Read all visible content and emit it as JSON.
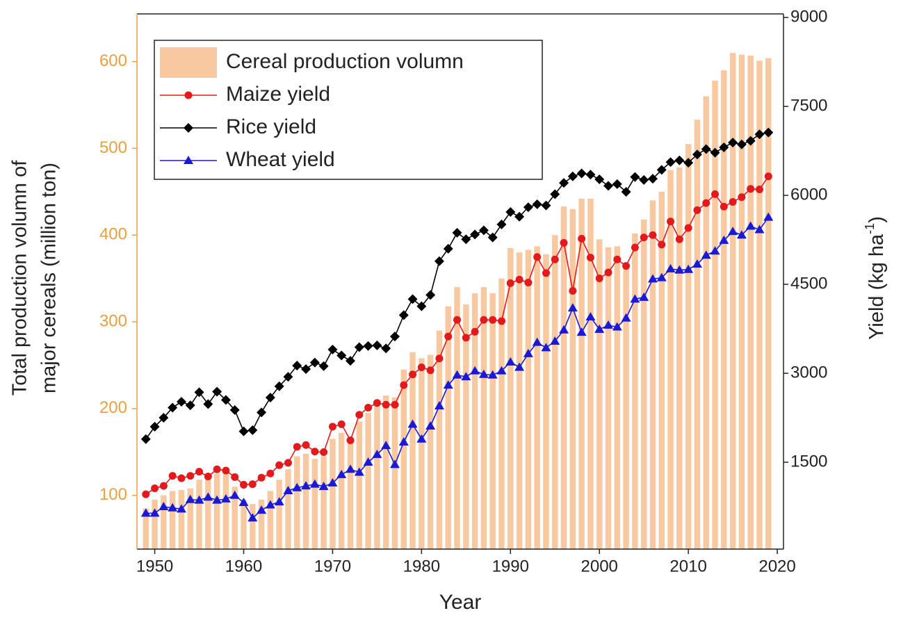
{
  "chart_data": {
    "type": "bar",
    "x_label": "Year",
    "y_label": [
      "Total production volumn of",
      "major cereals (million ton)"
    ],
    "y2_label": [
      "Yield (kg ha",
      "-1",
      ")"
    ],
    "x": [
      1949,
      1950,
      1951,
      1952,
      1953,
      1954,
      1955,
      1956,
      1957,
      1958,
      1959,
      1960,
      1961,
      1962,
      1963,
      1964,
      1965,
      1966,
      1967,
      1968,
      1969,
      1970,
      1971,
      1972,
      1973,
      1974,
      1975,
      1976,
      1977,
      1978,
      1979,
      1980,
      1981,
      1982,
      1983,
      1984,
      1985,
      1986,
      1987,
      1988,
      1989,
      1990,
      1991,
      1992,
      1993,
      1994,
      1995,
      1996,
      1997,
      1998,
      1999,
      2000,
      2001,
      2002,
      2003,
      2004,
      2005,
      2006,
      2007,
      2008,
      2009,
      2010,
      2011,
      2012,
      2013,
      2014,
      2015,
      2016,
      2017,
      2018,
      2019
    ],
    "xlim": [
      1948,
      2020.7
    ],
    "xticks": [
      1950,
      1960,
      1970,
      1980,
      1990,
      2000,
      2010,
      2020
    ],
    "ylim": [
      38,
      655
    ],
    "yticks": [
      100,
      200,
      300,
      400,
      500,
      600
    ],
    "y2lim": [
      35,
      9060
    ],
    "y2ticks": [
      1500,
      3000,
      4500,
      6000,
      7500,
      9000
    ],
    "legend": "upper left",
    "series": [
      {
        "name": "Cereal production volumn",
        "type": "bar",
        "color": "#f8c9a0",
        "axis": "y",
        "values": [
          85,
          95,
          100,
          105,
          106,
          108,
          118,
          122,
          125,
          130,
          110,
          95,
          90,
          95,
          105,
          118,
          130,
          145,
          148,
          142,
          145,
          165,
          172,
          165,
          185,
          195,
          210,
          215,
          213,
          245,
          265,
          258,
          262,
          290,
          318,
          340,
          320,
          333,
          340,
          333,
          350,
          385,
          380,
          383,
          387,
          378,
          400,
          433,
          430,
          442,
          442,
          395,
          386,
          387,
          365,
          402,
          418,
          440,
          450,
          475,
          478,
          505,
          533,
          560,
          578,
          590,
          610,
          608,
          607,
          601,
          604
        ]
      },
      {
        "name": "Maize yield",
        "type": "line",
        "marker": "circle",
        "color": "#e31a1c",
        "axis": "y2",
        "values": [
          960,
          1060,
          1100,
          1270,
          1230,
          1270,
          1340,
          1260,
          1380,
          1360,
          1250,
          1120,
          1130,
          1240,
          1310,
          1450,
          1490,
          1760,
          1790,
          1680,
          1670,
          2100,
          2140,
          1870,
          2300,
          2420,
          2500,
          2470,
          2470,
          2800,
          2980,
          3100,
          3050,
          3250,
          3620,
          3900,
          3600,
          3700,
          3900,
          3900,
          3880,
          4520,
          4580,
          4530,
          4960,
          4690,
          4920,
          5200,
          4390,
          5270,
          4950,
          4600,
          4700,
          4920,
          4810,
          5120,
          5290,
          5330,
          5170,
          5560,
          5260,
          5450,
          5750,
          5870,
          6020,
          5810,
          5890,
          5970,
          6110,
          6100,
          6320
        ]
      },
      {
        "name": "Rice yield",
        "type": "line",
        "marker": "diamond",
        "color": "#000000",
        "axis": "y2",
        "values": [
          1890,
          2100,
          2250,
          2420,
          2520,
          2460,
          2680,
          2480,
          2690,
          2550,
          2380,
          2020,
          2040,
          2340,
          2590,
          2780,
          2940,
          3130,
          3070,
          3180,
          3120,
          3400,
          3300,
          3210,
          3440,
          3460,
          3470,
          3420,
          3620,
          3980,
          4250,
          4130,
          4320,
          4890,
          5100,
          5370,
          5260,
          5340,
          5410,
          5290,
          5510,
          5720,
          5640,
          5800,
          5850,
          5830,
          6020,
          6210,
          6320,
          6370,
          6350,
          6270,
          6160,
          6190,
          6060,
          6310,
          6260,
          6280,
          6430,
          6560,
          6590,
          6550,
          6690,
          6780,
          6720,
          6810,
          6890,
          6860,
          6920,
          7030,
          7060
        ]
      },
      {
        "name": "Wheat yield",
        "type": "line",
        "marker": "triangle",
        "color": "#1a1ad6",
        "axis": "y2",
        "values": [
          640,
          640,
          750,
          730,
          710,
          870,
          860,
          910,
          860,
          880,
          940,
          820,
          560,
          690,
          780,
          830,
          1020,
          1070,
          1100,
          1130,
          1090,
          1150,
          1290,
          1380,
          1330,
          1500,
          1630,
          1780,
          1460,
          1840,
          2140,
          1890,
          2110,
          2450,
          2800,
          2970,
          2940,
          3040,
          2980,
          2970,
          3040,
          3190,
          3100,
          3330,
          3520,
          3430,
          3540,
          3730,
          4100,
          3690,
          3950,
          3740,
          3810,
          3780,
          3930,
          4250,
          4280,
          4590,
          4610,
          4760,
          4740,
          4750,
          4840,
          4990,
          5060,
          5240,
          5390,
          5330,
          5480,
          5420,
          5630
        ]
      }
    ]
  }
}
